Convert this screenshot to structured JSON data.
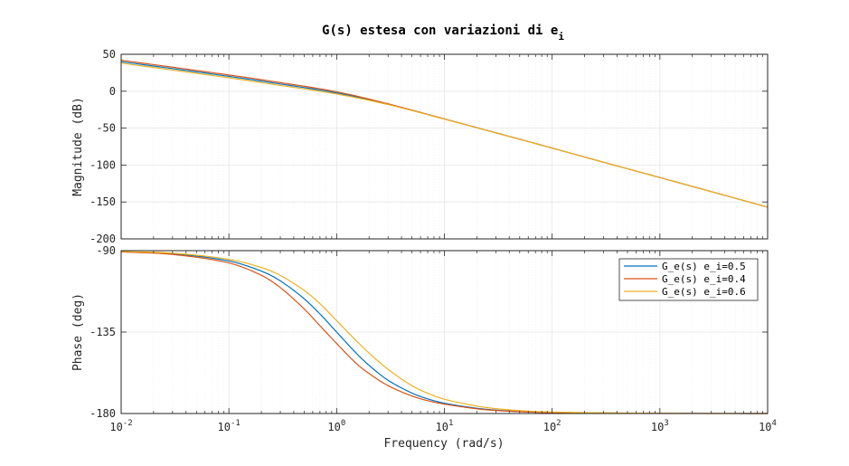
{
  "figure": {
    "title_main": "G(s) estesa con variazioni di e",
    "title_sub": "i",
    "xlabel": "Frequency  (rad/s)",
    "colors": {
      "axes": "#262626",
      "grid": "#e6e6e6",
      "background": "#ffffff"
    }
  },
  "chart_data": [
    {
      "type": "line",
      "panel": "magnitude",
      "ylabel": "Magnitude (dB)",
      "xlabel": "",
      "xscale": "log",
      "xlim": [
        0.01,
        10000
      ],
      "ylim": [
        -200,
        50
      ],
      "yticks": [
        50,
        0,
        -50,
        -100,
        -150,
        -200
      ],
      "ytick_labels": [
        "50",
        "0",
        "-50",
        "-100",
        "-150",
        "-200"
      ],
      "grid": true,
      "minor_grid": true,
      "x": [
        0.01,
        0.03,
        0.1,
        0.3,
        1,
        3,
        10,
        30,
        100,
        300,
        1000,
        3000,
        10000
      ],
      "series": [
        {
          "name": "G_e(s) e_i=0.5",
          "color": "#0072BD",
          "values": [
            40,
            30.6,
            20.1,
            9.8,
            -2.3,
            -17.5,
            -37.6,
            -56.3,
            -77.0,
            -96.2,
            -116.9,
            -136.0,
            -157.0
          ]
        },
        {
          "name": "G_e(s) e_i=0.4",
          "color": "#D95319",
          "values": [
            42,
            32.5,
            22.0,
            11.7,
            -0.8,
            -17.1,
            -37.5,
            -56.3,
            -77.0,
            -96.2,
            -116.9,
            -136.0,
            -157.0
          ]
        },
        {
          "name": "G_e(s) e_i=0.6",
          "color": "#EDB120",
          "values": [
            38,
            28.6,
            18.1,
            7.8,
            -3.8,
            -18.1,
            -37.8,
            -56.4,
            -77.0,
            -96.2,
            -116.9,
            -136.0,
            -157.0
          ]
        }
      ]
    },
    {
      "type": "line",
      "panel": "phase",
      "ylabel": "Phase (deg)",
      "xlabel": "Frequency  (rad/s)",
      "xscale": "log",
      "xlim": [
        0.01,
        10000
      ],
      "ylim": [
        -180,
        -90
      ],
      "yticks": [
        -90,
        -135,
        -180
      ],
      "ytick_labels": [
        "-90",
        "-135",
        "-180"
      ],
      "xtick_base": "10",
      "xtick_exponents": [
        "-2",
        "-1",
        "0",
        "1",
        "2",
        "3",
        "4"
      ],
      "grid": true,
      "minor_grid": true,
      "legend_placement": "top-right",
      "x": [
        0.01,
        0.03,
        0.1,
        0.2,
        0.3,
        0.5,
        0.7,
        1,
        1.5,
        2,
        3,
        5,
        7,
        10,
        20,
        30,
        50,
        100,
        1000,
        10000
      ],
      "series": [
        {
          "name": "G_e(s) e_i=0.5",
          "color": "#0072BD",
          "values": [
            -90.6,
            -91.7,
            -95.7,
            -101.3,
            -106.7,
            -116.6,
            -125.0,
            -135.0,
            -146.3,
            -153.4,
            -161.6,
            -168.7,
            -171.9,
            -174.3,
            -177.1,
            -178.1,
            -178.9,
            -179.4,
            -179.9,
            -180.0
          ]
        },
        {
          "name": "G_e(s) e_i=0.4",
          "color": "#D95319",
          "values": [
            -90.7,
            -92.1,
            -96.8,
            -103.6,
            -110.4,
            -122.2,
            -131.5,
            -141.3,
            -152.0,
            -157.9,
            -164.6,
            -170.3,
            -172.9,
            -174.8,
            -177.4,
            -178.3,
            -179.0,
            -179.5,
            -179.9,
            -180.0
          ]
        },
        {
          "name": "G_e(s) e_i=0.6",
          "color": "#EDB120",
          "values": [
            -90.5,
            -91.4,
            -94.8,
            -99.3,
            -103.7,
            -112.0,
            -119.3,
            -128.7,
            -139.4,
            -146.6,
            -155.6,
            -164.6,
            -168.8,
            -172.1,
            -175.9,
            -177.3,
            -178.4,
            -179.2,
            -179.9,
            -180.0
          ]
        }
      ]
    }
  ]
}
